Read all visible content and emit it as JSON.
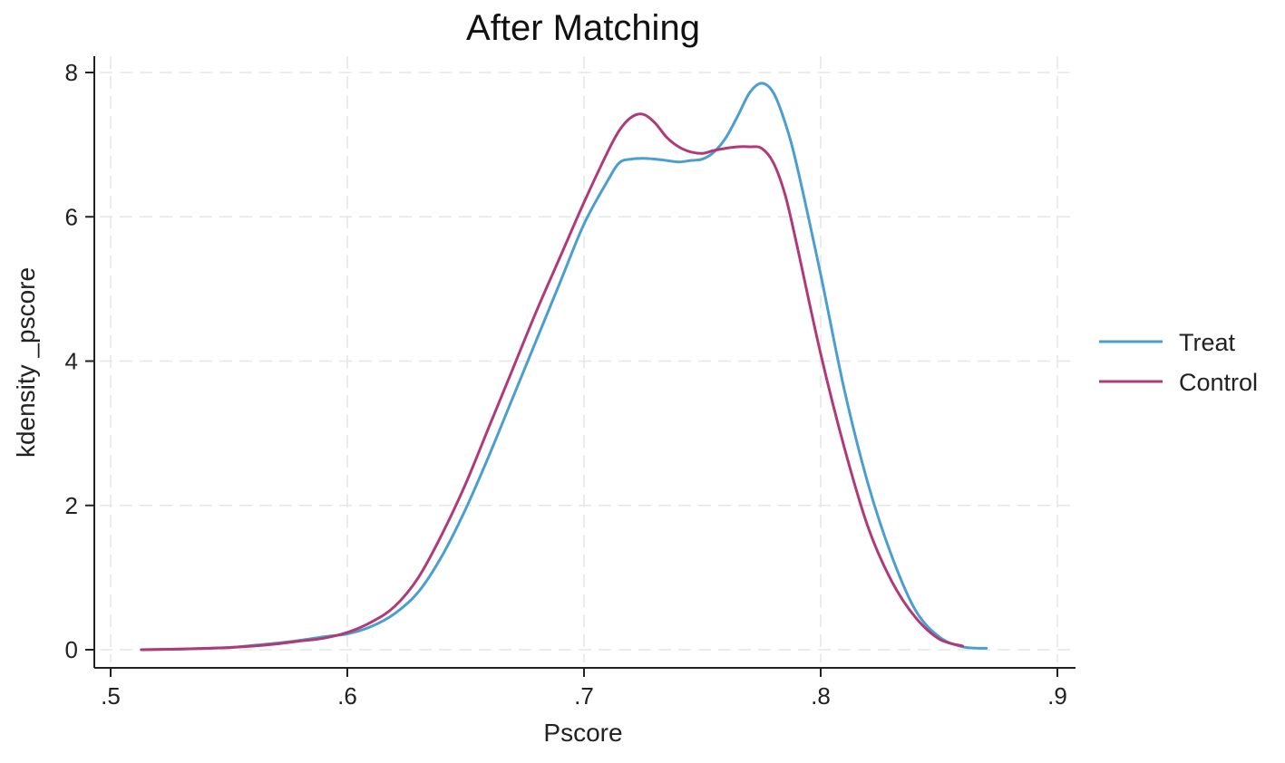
{
  "chart_data": {
    "type": "line",
    "title": "After Matching",
    "xlabel": "Pscore",
    "ylabel": "kdensity _pscore",
    "xlim": [
      0.5,
      0.9
    ],
    "ylim": [
      0,
      8
    ],
    "xticks": [
      0.5,
      0.6,
      0.7,
      0.8,
      0.9
    ],
    "xtick_labels": [
      ".5",
      ".6",
      ".7",
      ".8",
      ".9"
    ],
    "yticks": [
      0,
      2,
      4,
      6,
      8
    ],
    "ytick_labels": [
      "0",
      "2",
      "4",
      "6",
      "8"
    ],
    "grid": true,
    "legend_position": "right",
    "series": [
      {
        "name": "Treat",
        "color": "#4a9ed0",
        "x": [
          0.513,
          0.53,
          0.55,
          0.56,
          0.57,
          0.58,
          0.59,
          0.6,
          0.61,
          0.62,
          0.63,
          0.64,
          0.65,
          0.66,
          0.67,
          0.68,
          0.69,
          0.7,
          0.71,
          0.715,
          0.72,
          0.725,
          0.73,
          0.735,
          0.74,
          0.745,
          0.75,
          0.755,
          0.76,
          0.765,
          0.77,
          0.775,
          0.78,
          0.785,
          0.79,
          0.8,
          0.81,
          0.82,
          0.83,
          0.84,
          0.85,
          0.86,
          0.87
        ],
        "y": [
          0.0,
          0.01,
          0.03,
          0.06,
          0.09,
          0.13,
          0.18,
          0.22,
          0.32,
          0.5,
          0.8,
          1.3,
          1.95,
          2.7,
          3.5,
          4.3,
          5.1,
          5.9,
          6.5,
          6.75,
          6.8,
          6.81,
          6.8,
          6.78,
          6.76,
          6.78,
          6.8,
          6.9,
          7.1,
          7.4,
          7.72,
          7.85,
          7.72,
          7.3,
          6.7,
          5.2,
          3.6,
          2.3,
          1.3,
          0.55,
          0.18,
          0.04,
          0.02
        ]
      },
      {
        "name": "Control",
        "color": "#b03a78",
        "x": [
          0.513,
          0.53,
          0.55,
          0.56,
          0.57,
          0.58,
          0.59,
          0.6,
          0.61,
          0.62,
          0.63,
          0.64,
          0.65,
          0.66,
          0.67,
          0.68,
          0.69,
          0.7,
          0.71,
          0.715,
          0.72,
          0.725,
          0.73,
          0.735,
          0.74,
          0.745,
          0.75,
          0.755,
          0.76,
          0.765,
          0.77,
          0.775,
          0.78,
          0.785,
          0.79,
          0.8,
          0.81,
          0.82,
          0.83,
          0.84,
          0.85,
          0.86
        ],
        "y": [
          0.0,
          0.01,
          0.03,
          0.05,
          0.08,
          0.12,
          0.16,
          0.24,
          0.38,
          0.6,
          1.0,
          1.6,
          2.3,
          3.1,
          3.9,
          4.7,
          5.45,
          6.2,
          6.9,
          7.2,
          7.38,
          7.42,
          7.3,
          7.1,
          6.97,
          6.9,
          6.88,
          6.92,
          6.95,
          6.97,
          6.97,
          6.95,
          6.75,
          6.3,
          5.6,
          4.1,
          2.8,
          1.7,
          0.95,
          0.45,
          0.15,
          0.05
        ]
      }
    ]
  }
}
